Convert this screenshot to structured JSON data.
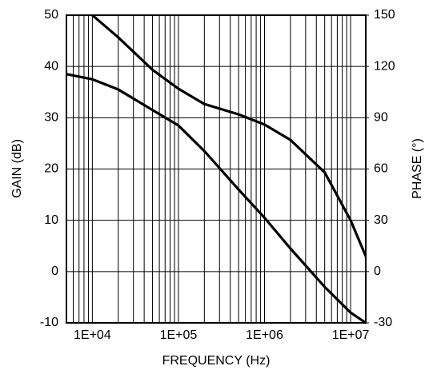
{
  "chart_data": {
    "type": "line",
    "x_label": "FREQUENCY (Hz)",
    "y_label": "GAIN (dB)",
    "y2_label": "PHASE (°)",
    "xscale": "log",
    "xlim": [
      5000,
      15000000
    ],
    "xticks": [
      {
        "value": 10000,
        "label": "1E+04"
      },
      {
        "value": 100000,
        "label": "1E+05"
      },
      {
        "value": 1000000,
        "label": "1E+06"
      },
      {
        "value": 10000000,
        "label": "1E+07"
      }
    ],
    "ylim": [
      -10,
      50
    ],
    "yticks": [
      -10,
      0,
      10,
      20,
      30,
      40,
      50
    ],
    "y2lim": [
      -30,
      150
    ],
    "y2ticks": [
      -30,
      0,
      30,
      60,
      90,
      120,
      150
    ],
    "grid": true,
    "minor_grid": true,
    "series": [
      {
        "name": "GAIN",
        "color": "#000000",
        "axis": "y",
        "x": [
          5000,
          10000,
          20000,
          50000,
          100000,
          200000,
          500000,
          1000000,
          2000000,
          5000000,
          10000000,
          15000000
        ],
        "values": [
          38.5,
          37.5,
          35.5,
          31.5,
          28.5,
          23.5,
          16,
          10.5,
          4.5,
          -3,
          -8,
          -10
        ]
      },
      {
        "name": "PHASE",
        "color": "#000000",
        "axis": "y2",
        "x": [
          10000,
          20000,
          50000,
          100000,
          200000,
          500000,
          1000000,
          2000000,
          5000000,
          10000000,
          15000000
        ],
        "values": [
          150,
          137,
          118,
          107,
          98,
          92,
          86,
          77,
          58,
          30,
          9
        ]
      }
    ]
  }
}
